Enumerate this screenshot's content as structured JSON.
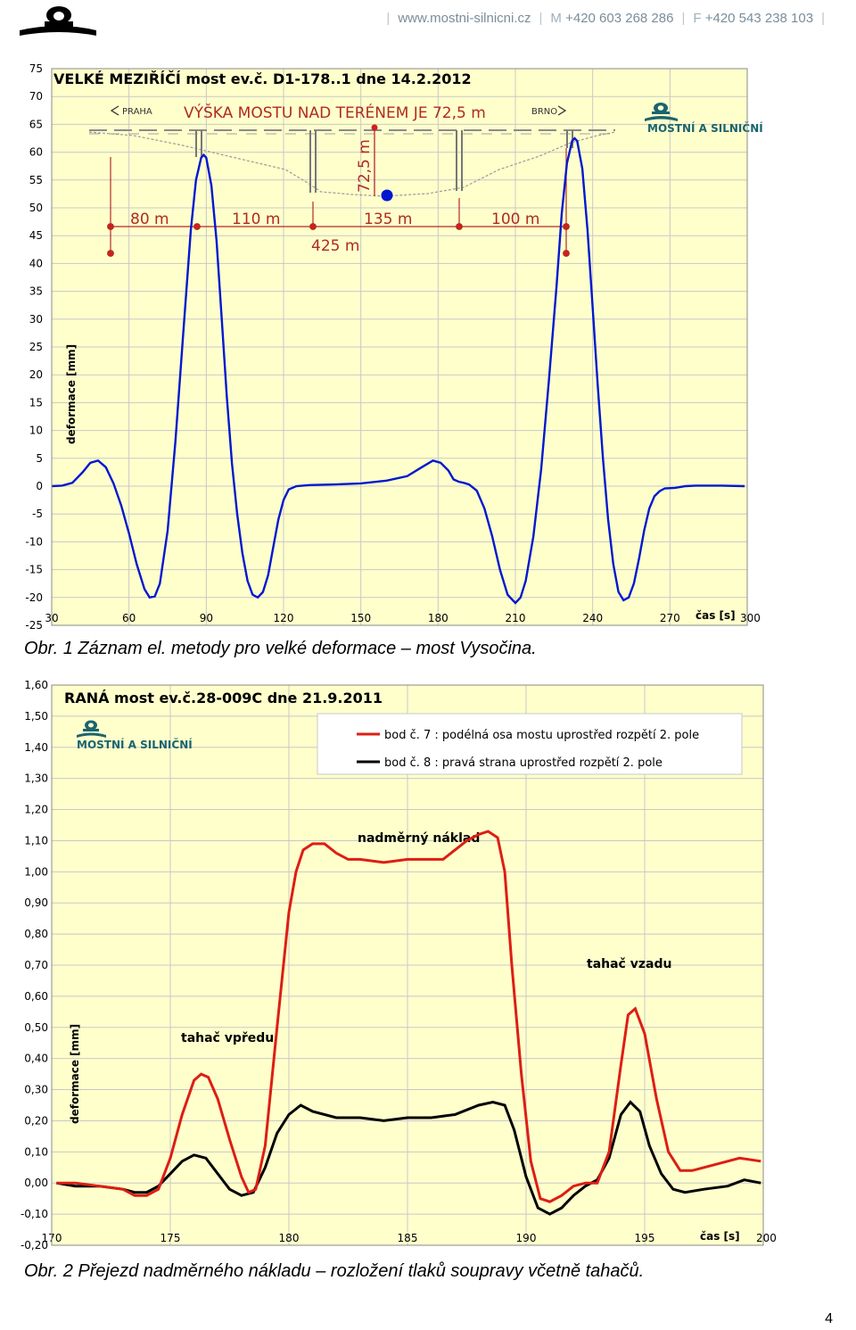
{
  "header": {
    "website": "www.mostni-silnicni.cz",
    "phone_prefix": "M",
    "phone": "+420 603 268 286",
    "fax_prefix": "F",
    "fax": "+420 543 238 103"
  },
  "brand": {
    "name": "MOSTNÍ A SILNIČNÍ",
    "color": "#1a6470"
  },
  "colors": {
    "plot_bg": "#ffffcc",
    "grid": "#c8c8c8",
    "blue_series": "#0018d0",
    "red_series": "#dd1e14",
    "black_series": "#000000",
    "annotation": "#e0231a"
  },
  "chart_data": [
    {
      "type": "line",
      "title": "VELKÉ MEZIŘÍČÍ most ev.č. D1-178..1 dne 14.2.2012",
      "xlabel": "čas [s]",
      "ylabel": "deformace [mm]",
      "xlim": [
        30,
        300
      ],
      "ylim": [
        -25,
        75
      ],
      "xticks": [
        30,
        60,
        90,
        120,
        150,
        180,
        210,
        240,
        270,
        300
      ],
      "yticks": [
        75,
        70,
        65,
        60,
        55,
        50,
        45,
        40,
        35,
        30,
        25,
        20,
        15,
        10,
        5,
        0,
        -5,
        -10,
        -15,
        -20,
        -25
      ],
      "grid": true,
      "series": [
        {
          "name": "",
          "color": "#0018d0",
          "points": [
            [
              30,
              0
            ],
            [
              34,
              0.1
            ],
            [
              38,
              0.6
            ],
            [
              42,
              2.5
            ],
            [
              45,
              4.2
            ],
            [
              48,
              4.6
            ],
            [
              51,
              3.4
            ],
            [
              54,
              0.5
            ],
            [
              57,
              -3.5
            ],
            [
              60,
              -8.5
            ],
            [
              63,
              -14
            ],
            [
              66,
              -18.5
            ],
            [
              68,
              -20
            ],
            [
              70,
              -19.8
            ],
            [
              72,
              -17.5
            ],
            [
              75,
              -8
            ],
            [
              78,
              8
            ],
            [
              81,
              27
            ],
            [
              84,
              46
            ],
            [
              86,
              55
            ],
            [
              88,
              59
            ],
            [
              89,
              59.5
            ],
            [
              90,
              59
            ],
            [
              92,
              54
            ],
            [
              94,
              44
            ],
            [
              96,
              30
            ],
            [
              98,
              16
            ],
            [
              100,
              4
            ],
            [
              102,
              -5
            ],
            [
              104,
              -12
            ],
            [
              106,
              -17
            ],
            [
              108,
              -19.5
            ],
            [
              110,
              -20
            ],
            [
              112,
              -19
            ],
            [
              114,
              -16
            ],
            [
              116,
              -11
            ],
            [
              118,
              -6
            ],
            [
              120,
              -2.5
            ],
            [
              122,
              -0.6
            ],
            [
              125,
              0
            ],
            [
              130,
              0.2
            ],
            [
              140,
              0.3
            ],
            [
              150,
              0.5
            ],
            [
              160,
              1
            ],
            [
              168,
              1.8
            ],
            [
              174,
              3.5
            ],
            [
              178,
              4.6
            ],
            [
              181,
              4.2
            ],
            [
              184,
              2.8
            ],
            [
              186,
              1.2
            ],
            [
              188,
              0.8
            ],
            [
              190,
              0.6
            ],
            [
              192,
              0.3
            ],
            [
              195,
              -0.8
            ],
            [
              198,
              -4
            ],
            [
              201,
              -9
            ],
            [
              204,
              -15
            ],
            [
              207,
              -19.5
            ],
            [
              210,
              -21
            ],
            [
              212,
              -20
            ],
            [
              214,
              -17
            ],
            [
              217,
              -9
            ],
            [
              220,
              3
            ],
            [
              223,
              19
            ],
            [
              226,
              36
            ],
            [
              228,
              49
            ],
            [
              230,
              58
            ],
            [
              232,
              62
            ],
            [
              233,
              62.5
            ],
            [
              234,
              62
            ],
            [
              236,
              57
            ],
            [
              238,
              46
            ],
            [
              240,
              32
            ],
            [
              242,
              18
            ],
            [
              244,
              5
            ],
            [
              246,
              -6
            ],
            [
              248,
              -14
            ],
            [
              250,
              -19
            ],
            [
              252,
              -20.5
            ],
            [
              254,
              -20
            ],
            [
              256,
              -17.5
            ],
            [
              258,
              -13
            ],
            [
              260,
              -8
            ],
            [
              262,
              -4
            ],
            [
              264,
              -1.8
            ],
            [
              266,
              -0.9
            ],
            [
              268,
              -0.4
            ],
            [
              272,
              -0.3
            ],
            [
              276,
              0
            ],
            [
              280,
              0.1
            ],
            [
              290,
              0.1
            ],
            [
              299,
              0
            ]
          ]
        }
      ],
      "overlay": {
        "praha": "PRAHA",
        "brno": "BRNO",
        "height_label": "VÝŠKA MOSTU NAD TERÉNEM JE 72,5 m",
        "vertical_dim": "72,5 m",
        "spans": [
          "80 m",
          "110 m",
          "135 m",
          "100 m"
        ],
        "total": "425 m"
      }
    },
    {
      "type": "line",
      "title": "RANÁ most ev.č.28-009C  dne 21.9.2011",
      "xlabel": "čas [s]",
      "ylabel": "deformace [mm]",
      "xlim": [
        170,
        200
      ],
      "ylim": [
        -0.2,
        1.6
      ],
      "xticks": [
        170,
        175,
        180,
        185,
        190,
        195,
        200
      ],
      "yticks": [
        "1,60",
        "1,50",
        "1,40",
        "1,30",
        "1,20",
        "1,10",
        "1,00",
        "0,90",
        "0,80",
        "0,70",
        "0,60",
        "0,50",
        "0,40",
        "0,30",
        "0,20",
        "0,10",
        "0,00",
        "-0,10",
        "-0,20"
      ],
      "grid": true,
      "legend_position": "top-right",
      "series": [
        {
          "name": "bod č. 7 : podélná osa mostu uprostřed rozpětí 2. pole",
          "color": "#dd1e14",
          "points": [
            [
              170.2,
              0.0
            ],
            [
              171,
              0.0
            ],
            [
              172,
              -0.01
            ],
            [
              173,
              -0.02
            ],
            [
              173.5,
              -0.04
            ],
            [
              174,
              -0.04
            ],
            [
              174.5,
              -0.02
            ],
            [
              175,
              0.08
            ],
            [
              175.5,
              0.22
            ],
            [
              176,
              0.33
            ],
            [
              176.3,
              0.35
            ],
            [
              176.6,
              0.34
            ],
            [
              177,
              0.27
            ],
            [
              177.5,
              0.14
            ],
            [
              178,
              0.02
            ],
            [
              178.3,
              -0.03
            ],
            [
              178.6,
              -0.02
            ],
            [
              179,
              0.12
            ],
            [
              179.5,
              0.5
            ],
            [
              180,
              0.87
            ],
            [
              180.3,
              1.0
            ],
            [
              180.6,
              1.07
            ],
            [
              181,
              1.09
            ],
            [
              181.5,
              1.09
            ],
            [
              182,
              1.06
            ],
            [
              182.5,
              1.04
            ],
            [
              183,
              1.04
            ],
            [
              184,
              1.03
            ],
            [
              185,
              1.04
            ],
            [
              186,
              1.04
            ],
            [
              186.5,
              1.04
            ],
            [
              187,
              1.07
            ],
            [
              187.5,
              1.1
            ],
            [
              188,
              1.12
            ],
            [
              188.4,
              1.13
            ],
            [
              188.8,
              1.11
            ],
            [
              189.1,
              1.0
            ],
            [
              189.4,
              0.7
            ],
            [
              189.8,
              0.35
            ],
            [
              190.2,
              0.07
            ],
            [
              190.6,
              -0.05
            ],
            [
              191,
              -0.06
            ],
            [
              191.5,
              -0.04
            ],
            [
              192,
              -0.01
            ],
            [
              192.5,
              0.0
            ],
            [
              193,
              0.0
            ],
            [
              193.5,
              0.1
            ],
            [
              194,
              0.38
            ],
            [
              194.3,
              0.54
            ],
            [
              194.6,
              0.56
            ],
            [
              195,
              0.48
            ],
            [
              195.5,
              0.27
            ],
            [
              196,
              0.1
            ],
            [
              196.5,
              0.04
            ],
            [
              197,
              0.04
            ],
            [
              198,
              0.06
            ],
            [
              199,
              0.08
            ],
            [
              199.9,
              0.07
            ]
          ]
        },
        {
          "name": "bod č. 8 : pravá strana uprostřed rozpětí 2. pole",
          "color": "#000000",
          "points": [
            [
              170.2,
              0.0
            ],
            [
              171,
              -0.01
            ],
            [
              172,
              -0.01
            ],
            [
              173,
              -0.02
            ],
            [
              173.5,
              -0.03
            ],
            [
              174,
              -0.03
            ],
            [
              174.5,
              -0.01
            ],
            [
              175,
              0.03
            ],
            [
              175.5,
              0.07
            ],
            [
              176,
              0.09
            ],
            [
              176.5,
              0.08
            ],
            [
              177,
              0.03
            ],
            [
              177.5,
              -0.02
            ],
            [
              178,
              -0.04
            ],
            [
              178.5,
              -0.03
            ],
            [
              179,
              0.05
            ],
            [
              179.5,
              0.16
            ],
            [
              180,
              0.22
            ],
            [
              180.5,
              0.25
            ],
            [
              181,
              0.23
            ],
            [
              182,
              0.21
            ],
            [
              183,
              0.21
            ],
            [
              184,
              0.2
            ],
            [
              185,
              0.21
            ],
            [
              186,
              0.21
            ],
            [
              187,
              0.22
            ],
            [
              188,
              0.25
            ],
            [
              188.6,
              0.26
            ],
            [
              189.1,
              0.25
            ],
            [
              189.5,
              0.17
            ],
            [
              190,
              0.02
            ],
            [
              190.5,
              -0.08
            ],
            [
              191,
              -0.1
            ],
            [
              191.5,
              -0.08
            ],
            [
              192,
              -0.04
            ],
            [
              192.5,
              -0.01
            ],
            [
              193,
              0.01
            ],
            [
              193.5,
              0.08
            ],
            [
              194,
              0.22
            ],
            [
              194.4,
              0.26
            ],
            [
              194.8,
              0.23
            ],
            [
              195.2,
              0.12
            ],
            [
              195.7,
              0.03
            ],
            [
              196.2,
              -0.02
            ],
            [
              196.7,
              -0.03
            ],
            [
              197.5,
              -0.02
            ],
            [
              198.5,
              -0.01
            ],
            [
              199.2,
              0.01
            ],
            [
              199.9,
              0.0
            ]
          ]
        }
      ],
      "annotations": {
        "heavy_load": "nadměrný náklad",
        "front_tractor": "tahač vpředu",
        "rear_tractor": "tahač vzadu"
      }
    }
  ],
  "captions": {
    "fig1": "Obr. 1 Záznam el. metody pro velké deformace – most Vysočina.",
    "fig2": "Obr. 2 Přejezd nadměrného nákladu – rozložení tlaků soupravy včetně tahačů."
  },
  "page_number": "4"
}
